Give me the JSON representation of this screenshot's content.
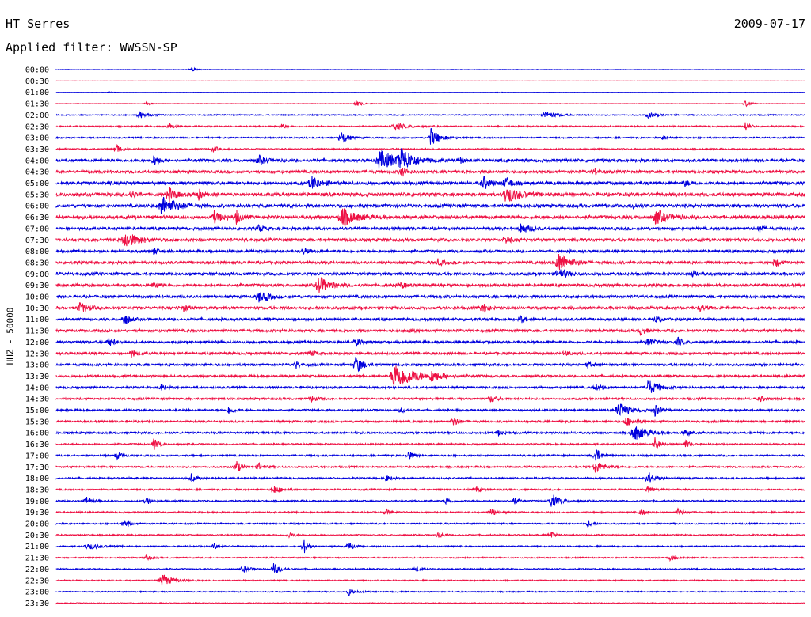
{
  "header": {
    "station": "HT Serres",
    "date": "2009-07-17",
    "filter": "Applied filter: WWSSN-SP"
  },
  "chart_data": {
    "type": "line",
    "title": "HT Serres",
    "date": "2009-07-17",
    "filter": "Applied filter: WWSSN-SP",
    "ylabel": "HHZ - 50000",
    "row_labels": [
      "00:00",
      "00:30",
      "01:00",
      "01:30",
      "02:00",
      "02:30",
      "03:00",
      "03:30",
      "04:00",
      "04:30",
      "05:00",
      "05:30",
      "06:00",
      "06:30",
      "07:00",
      "07:30",
      "08:00",
      "08:30",
      "09:00",
      "09:30",
      "10:00",
      "10:30",
      "11:00",
      "11:30",
      "12:00",
      "12:30",
      "13:00",
      "13:30",
      "14:00",
      "14:30",
      "15:00",
      "15:30",
      "16:00",
      "16:30",
      "17:00",
      "17:30",
      "18:00",
      "18:30",
      "19:00",
      "19:30",
      "20:00",
      "20:30",
      "21:00",
      "21:30",
      "22:00",
      "22:30",
      "23:00",
      "23:30"
    ],
    "colors": {
      "even": "#0000dd",
      "odd": "#ee1144"
    },
    "trace_minutes": 30,
    "noise": [
      0.3,
      0.2,
      0.2,
      0.3,
      0.8,
      1,
      1,
      1,
      2,
      2,
      2.2,
      2.4,
      2.3,
      2.4,
      2,
      2.1,
      1.8,
      1.9,
      2,
      2,
      1.9,
      2,
      1.8,
      1.8,
      1.8,
      1.7,
      1.6,
      1.6,
      1.5,
      1.4,
      1.4,
      1.4,
      1.4,
      1.2,
      1.2,
      1.2,
      1.2,
      1.1,
      1.1,
      1.1,
      1.0,
      1.0,
      1.0,
      0.9,
      0.9,
      0.9,
      0.8,
      0.6
    ],
    "events": [
      [
        [
          0.18,
          3,
          0.6
        ]
      ],
      [],
      [
        [
          0.07,
          1.5,
          0.4
        ],
        [
          0.59,
          1.5,
          0.4
        ]
      ],
      [
        [
          0.12,
          2.5,
          0.5
        ],
        [
          0.4,
          4,
          0.8
        ],
        [
          0.92,
          4,
          0.8
        ]
      ],
      [
        [
          0.11,
          5,
          1
        ],
        [
          0.65,
          5,
          1.5
        ],
        [
          0.79,
          4,
          1
        ]
      ],
      [
        [
          0.15,
          5,
          0.5
        ],
        [
          0.3,
          3,
          0.6
        ],
        [
          0.45,
          5,
          1.5
        ],
        [
          0.92,
          7,
          0.5
        ]
      ],
      [
        [
          0.38,
          9,
          0.8
        ],
        [
          0.5,
          12,
          1
        ],
        [
          0.81,
          4,
          0.6
        ]
      ],
      [
        [
          0.08,
          8,
          0.5
        ],
        [
          0.21,
          4,
          0.6
        ]
      ],
      [
        [
          0.13,
          7,
          0.6
        ],
        [
          0.27,
          6,
          0.8
        ],
        [
          0.43,
          12,
          2.5
        ],
        [
          0.46,
          16,
          1.2
        ],
        [
          0.54,
          3,
          0.6
        ]
      ],
      [
        [
          0.46,
          8,
          0.6
        ],
        [
          0.72,
          4,
          0.6
        ]
      ],
      [
        [
          0.34,
          10,
          1
        ],
        [
          0.57,
          9,
          0.8
        ],
        [
          0.6,
          7,
          0.8
        ],
        [
          0.84,
          4,
          0.6
        ]
      ],
      [
        [
          0.1,
          5,
          0.6
        ],
        [
          0.15,
          9,
          0.8
        ],
        [
          0.19,
          7,
          0.4
        ],
        [
          0.6,
          12,
          1.4
        ]
      ],
      [
        [
          0.14,
          13,
          1.6
        ],
        [
          0.77,
          4,
          0.6
        ]
      ],
      [
        [
          0.21,
          8,
          1
        ],
        [
          0.24,
          9,
          0.6
        ],
        [
          0.38,
          13,
          1.5
        ],
        [
          0.8,
          10,
          1.2
        ]
      ],
      [
        [
          0.27,
          6,
          0.5
        ],
        [
          0.62,
          7,
          1
        ],
        [
          0.94,
          5,
          0.4
        ]
      ],
      [
        [
          0.09,
          11,
          1.6
        ],
        [
          0.6,
          5,
          0.6
        ]
      ],
      [
        [
          0.13,
          4,
          0.6
        ],
        [
          0.33,
          4,
          0.6
        ]
      ],
      [
        [
          0.51,
          4,
          0.6
        ],
        [
          0.67,
          13,
          1.4
        ],
        [
          0.96,
          6,
          0.5
        ]
      ],
      [
        [
          0.67,
          7,
          1
        ],
        [
          0.85,
          4,
          0.6
        ]
      ],
      [
        [
          0.13,
          4,
          0.6
        ],
        [
          0.35,
          12,
          1.2
        ],
        [
          0.46,
          4,
          0.6
        ]
      ],
      [
        [
          0.28,
          4,
          0.6
        ],
        [
          0.27,
          8,
          0.6
        ]
      ],
      [
        [
          0.03,
          7,
          1
        ],
        [
          0.17,
          4,
          0.6
        ],
        [
          0.57,
          9,
          0.5
        ],
        [
          0.86,
          4,
          0.6
        ]
      ],
      [
        [
          0.09,
          10,
          0.6
        ],
        [
          0.62,
          5,
          0.6
        ],
        [
          0.8,
          4,
          0.6
        ]
      ],
      [
        [
          0.47,
          4,
          0.6
        ],
        [
          0.78,
          6,
          0.6
        ]
      ],
      [
        [
          0.07,
          6,
          0.6
        ],
        [
          0.4,
          5,
          0.6
        ],
        [
          0.79,
          8,
          0.6
        ],
        [
          0.83,
          6,
          0.6
        ]
      ],
      [
        [
          0.1,
          5,
          0.6
        ],
        [
          0.34,
          4,
          0.6
        ],
        [
          0.68,
          3,
          0.6
        ]
      ],
      [
        [
          0.32,
          5,
          0.6
        ],
        [
          0.4,
          12,
          0.8
        ],
        [
          0.71,
          4,
          0.6
        ]
      ],
      [
        [
          0.45,
          18,
          2.5
        ],
        [
          0.5,
          6,
          1
        ]
      ],
      [
        [
          0.14,
          4,
          0.6
        ],
        [
          0.72,
          5,
          0.6
        ],
        [
          0.79,
          10,
          1.2
        ]
      ],
      [
        [
          0.34,
          4,
          0.6
        ],
        [
          0.58,
          5,
          0.6
        ],
        [
          0.94,
          4,
          0.6
        ]
      ],
      [
        [
          0.23,
          6,
          0.5
        ],
        [
          0.46,
          4,
          0.6
        ],
        [
          0.75,
          11,
          1.2
        ],
        [
          0.8,
          8,
          0.6
        ]
      ],
      [
        [
          0.53,
          6,
          0.6
        ],
        [
          0.76,
          6,
          1
        ]
      ],
      [
        [
          0.59,
          4,
          0.6
        ],
        [
          0.77,
          12,
          1.4
        ],
        [
          0.84,
          5,
          0.6
        ]
      ],
      [
        [
          0.13,
          7,
          0.6
        ],
        [
          0.8,
          9,
          0.5
        ],
        [
          0.84,
          6,
          0.5
        ]
      ],
      [
        [
          0.08,
          5,
          0.6
        ],
        [
          0.47,
          6,
          0.6
        ],
        [
          0.72,
          11,
          0.6
        ]
      ],
      [
        [
          0.24,
          9,
          0.6
        ],
        [
          0.27,
          5,
          0.6
        ],
        [
          0.72,
          8,
          1
        ]
      ],
      [
        [
          0.18,
          6,
          0.6
        ],
        [
          0.44,
          4,
          0.6
        ],
        [
          0.79,
          9,
          0.8
        ]
      ],
      [
        [
          0.29,
          6,
          0.8
        ],
        [
          0.56,
          4,
          0.6
        ],
        [
          0.79,
          5,
          0.6
        ]
      ],
      [
        [
          0.04,
          6,
          0.6
        ],
        [
          0.12,
          5,
          0.6
        ],
        [
          0.52,
          5,
          0.6
        ],
        [
          0.61,
          5,
          0.6
        ],
        [
          0.66,
          8,
          1.2
        ]
      ],
      [
        [
          0.44,
          4,
          0.6
        ],
        [
          0.58,
          6,
          0.6
        ],
        [
          0.78,
          5,
          0.6
        ],
        [
          0.83,
          5,
          0.6
        ]
      ],
      [
        [
          0.09,
          6,
          0.6
        ],
        [
          0.71,
          4,
          0.6
        ]
      ],
      [
        [
          0.31,
          4,
          0.6
        ],
        [
          0.51,
          4,
          0.6
        ],
        [
          0.66,
          5,
          0.6
        ]
      ],
      [
        [
          0.04,
          5,
          1.2
        ],
        [
          0.21,
          4,
          0.6
        ],
        [
          0.33,
          11,
          0.5
        ],
        [
          0.39,
          6,
          0.6
        ]
      ],
      [
        [
          0.12,
          4,
          0.6
        ],
        [
          0.82,
          4,
          0.6
        ]
      ],
      [
        [
          0.25,
          5,
          0.6
        ],
        [
          0.29,
          8,
          0.8
        ],
        [
          0.48,
          4,
          0.5
        ]
      ],
      [
        [
          0.14,
          9,
          1.2
        ]
      ],
      [
        [
          0.39,
          5,
          0.8
        ]
      ],
      []
    ]
  }
}
